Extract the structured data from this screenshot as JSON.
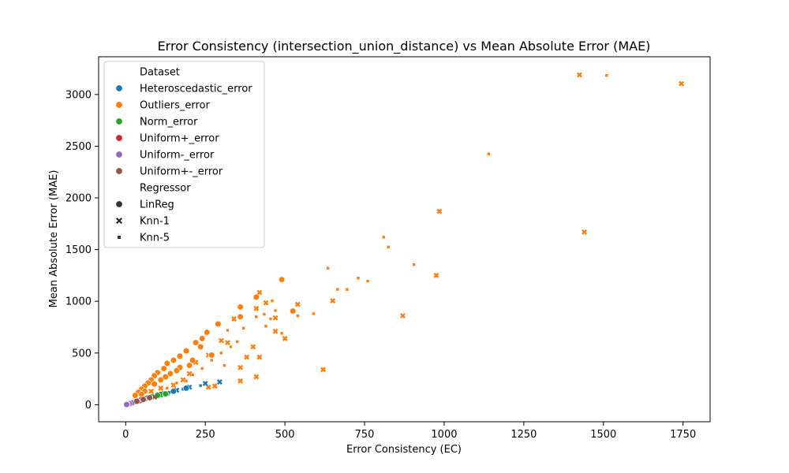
{
  "chart_data": {
    "type": "scatter",
    "title": "Error Consistency (intersection_union_distance) vs Mean Absolute Error (MAE)",
    "xlabel": "Error Consistency (EC)",
    "ylabel": "Mean Absolute Error (MAE)",
    "xlim": [
      -85,
      1835
    ],
    "ylim": [
      -165,
      3365
    ],
    "xticks": [
      0,
      250,
      500,
      750,
      1000,
      1250,
      1500,
      1750
    ],
    "yticks": [
      0,
      500,
      1000,
      1500,
      2000,
      2500,
      3000
    ],
    "grid": false,
    "legend_position": "upper-left",
    "legend": {
      "hue_title": "Dataset",
      "style_title": "Regressor",
      "datasets": [
        {
          "name": "Heteroscedastic_error",
          "color": "#1f77b4"
        },
        {
          "name": "Outliers_error",
          "color": "#ff7f0e"
        },
        {
          "name": "Norm_error",
          "color": "#2ca02c"
        },
        {
          "name": "Uniform+_error",
          "color": "#d62728"
        },
        {
          "name": "Uniform-_error",
          "color": "#9467bd"
        },
        {
          "name": "Uniform+-_error",
          "color": "#8c564b"
        }
      ],
      "regressors": [
        {
          "name": "LinReg",
          "marker": "circle"
        },
        {
          "name": "Knn-1",
          "marker": "x"
        },
        {
          "name": "Knn-5",
          "marker": "square"
        }
      ]
    },
    "series": [
      {
        "dataset": "Outliers_error",
        "regressor": "Knn-1",
        "points": [
          [
            1425,
            3190
          ],
          [
            1745,
            3105
          ],
          [
            985,
            1870
          ],
          [
            1440,
            1670
          ],
          [
            975,
            1250
          ],
          [
            870,
            860
          ],
          [
            620,
            340
          ],
          [
            650,
            1005
          ],
          [
            420,
            1085
          ],
          [
            440,
            985
          ],
          [
            540,
            970
          ],
          [
            410,
            930
          ],
          [
            470,
            840
          ],
          [
            340,
            830
          ],
          [
            400,
            560
          ],
          [
            470,
            710
          ],
          [
            500,
            640
          ],
          [
            420,
            460
          ],
          [
            380,
            460
          ],
          [
            360,
            360
          ],
          [
            360,
            230
          ],
          [
            410,
            270
          ],
          [
            280,
            180
          ],
          [
            320,
            600
          ],
          [
            260,
            480
          ],
          [
            300,
            620
          ],
          [
            220,
            410
          ],
          [
            200,
            300
          ],
          [
            180,
            240
          ],
          [
            150,
            190
          ],
          [
            110,
            160
          ],
          [
            80,
            130
          ],
          [
            260,
            170
          ]
        ]
      },
      {
        "dataset": "Outliers_error",
        "regressor": "Knn-5",
        "points": [
          [
            1510,
            3185
          ],
          [
            1140,
            2425
          ],
          [
            810,
            1620
          ],
          [
            825,
            1525
          ],
          [
            905,
            1355
          ],
          [
            635,
            1320
          ],
          [
            730,
            1225
          ],
          [
            760,
            1195
          ],
          [
            665,
            1115
          ],
          [
            695,
            1115
          ],
          [
            460,
            1005
          ],
          [
            435,
            875
          ],
          [
            455,
            830
          ],
          [
            590,
            880
          ],
          [
            410,
            850
          ],
          [
            470,
            910
          ],
          [
            540,
            860
          ],
          [
            440,
            760
          ],
          [
            490,
            690
          ],
          [
            370,
            740
          ],
          [
            320,
            720
          ],
          [
            350,
            610
          ],
          [
            330,
            560
          ],
          [
            300,
            500
          ],
          [
            310,
            380
          ],
          [
            270,
            430
          ],
          [
            240,
            350
          ],
          [
            210,
            290
          ],
          [
            190,
            230
          ],
          [
            160,
            210
          ],
          [
            130,
            160
          ],
          [
            100,
            110
          ],
          [
            70,
            80
          ]
        ]
      },
      {
        "dataset": "Outliers_error",
        "regressor": "LinReg",
        "points": [
          [
            490,
            1210
          ],
          [
            410,
            1040
          ],
          [
            360,
            945
          ],
          [
            525,
            905
          ],
          [
            360,
            850
          ],
          [
            290,
            780
          ],
          [
            255,
            700
          ],
          [
            240,
            640
          ],
          [
            220,
            600
          ],
          [
            235,
            560
          ],
          [
            190,
            520
          ],
          [
            170,
            470
          ],
          [
            150,
            430
          ],
          [
            130,
            400
          ],
          [
            120,
            350
          ],
          [
            100,
            310
          ],
          [
            90,
            280
          ],
          [
            80,
            240
          ],
          [
            70,
            210
          ],
          [
            60,
            180
          ],
          [
            50,
            150
          ],
          [
            40,
            120
          ],
          [
            30,
            90
          ],
          [
            270,
            480
          ],
          [
            210,
            430
          ],
          [
            170,
            360
          ],
          [
            140,
            300
          ],
          [
            110,
            240
          ],
          [
            90,
            200
          ],
          [
            60,
            130
          ],
          [
            50,
            100
          ],
          [
            200,
            380
          ],
          [
            160,
            330
          ],
          [
            125,
            270
          ]
        ]
      },
      {
        "dataset": "Heteroscedastic_error",
        "regressor": "Knn-1",
        "points": [
          [
            295,
            220
          ],
          [
            250,
            205
          ],
          [
            200,
            170
          ],
          [
            160,
            140
          ],
          [
            120,
            110
          ],
          [
            90,
            80
          ],
          [
            60,
            60
          ],
          [
            30,
            30
          ]
        ]
      },
      {
        "dataset": "Heteroscedastic_error",
        "regressor": "Knn-5",
        "points": [
          [
            235,
            185
          ],
          [
            180,
            150
          ],
          [
            140,
            120
          ],
          [
            100,
            90
          ],
          [
            70,
            65
          ],
          [
            40,
            40
          ]
        ]
      },
      {
        "dataset": "Heteroscedastic_error",
        "regressor": "LinReg",
        "points": [
          [
            190,
            160
          ],
          [
            150,
            130
          ],
          [
            110,
            100
          ],
          [
            80,
            75
          ],
          [
            50,
            50
          ],
          [
            25,
            25
          ]
        ]
      },
      {
        "dataset": "Norm_error",
        "regressor": "Knn-1",
        "points": [
          [
            130,
            110
          ],
          [
            110,
            95
          ],
          [
            90,
            80
          ],
          [
            70,
            65
          ]
        ]
      },
      {
        "dataset": "Norm_error",
        "regressor": "Knn-5",
        "points": [
          [
            120,
            100
          ],
          [
            95,
            85
          ],
          [
            75,
            70
          ]
        ]
      },
      {
        "dataset": "Norm_error",
        "regressor": "LinReg",
        "points": [
          [
            125,
            105
          ],
          [
            100,
            90
          ],
          [
            80,
            75
          ],
          [
            60,
            60
          ]
        ]
      },
      {
        "dataset": "Uniform+_error",
        "regressor": "Knn-1",
        "points": [
          [
            70,
            60
          ],
          [
            55,
            50
          ]
        ]
      },
      {
        "dataset": "Uniform+_error",
        "regressor": "LinReg",
        "points": [
          [
            60,
            55
          ],
          [
            45,
            40
          ]
        ]
      },
      {
        "dataset": "Uniform-_error",
        "regressor": "Knn-1",
        "points": [
          [
            40,
            35
          ],
          [
            30,
            25
          ],
          [
            20,
            15
          ],
          [
            10,
            8
          ]
        ]
      },
      {
        "dataset": "Uniform-_error",
        "regressor": "Knn-5",
        "points": [
          [
            35,
            30
          ],
          [
            25,
            20
          ],
          [
            15,
            10
          ]
        ]
      },
      {
        "dataset": "Uniform-_error",
        "regressor": "LinReg",
        "points": [
          [
            30,
            28
          ],
          [
            20,
            18
          ],
          [
            12,
            10
          ],
          [
            5,
            5
          ],
          [
            3,
            2
          ]
        ]
      },
      {
        "dataset": "Uniform+-_error",
        "regressor": "Knn-1",
        "points": [
          [
            90,
            75
          ],
          [
            70,
            65
          ],
          [
            50,
            50
          ]
        ]
      },
      {
        "dataset": "Uniform+-_error",
        "regressor": "Knn-5",
        "points": [
          [
            80,
            70
          ],
          [
            60,
            55
          ],
          [
            40,
            40
          ]
        ]
      },
      {
        "dataset": "Uniform+-_error",
        "regressor": "LinReg",
        "points": [
          [
            75,
            68
          ],
          [
            55,
            50
          ],
          [
            35,
            33
          ]
        ]
      }
    ]
  }
}
